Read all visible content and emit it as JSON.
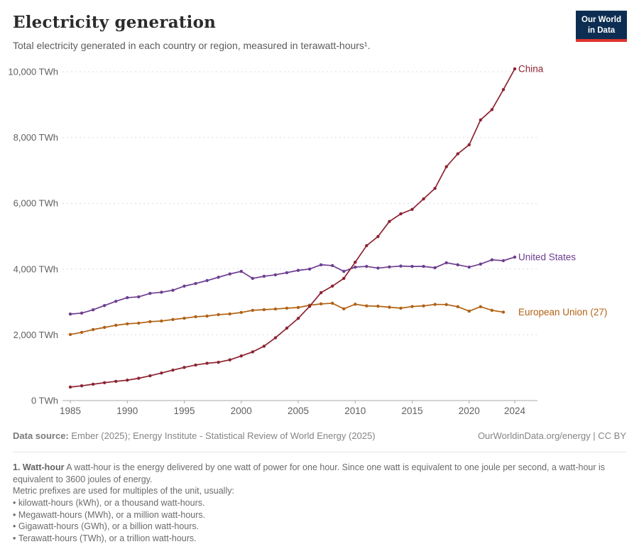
{
  "header": {
    "title": "Electricity generation",
    "subtitle": "Total electricity generated in each country or region, measured in terawatt-hours¹.",
    "logo": {
      "line1": "Our World",
      "line2": "in Data",
      "bg_color": "#0d2e52",
      "accent_color": "#e0342e"
    }
  },
  "chart_data": {
    "type": "line",
    "title": "Electricity generation",
    "unit": "TWh",
    "xlabel": "",
    "ylabel": "",
    "xlim": [
      1985,
      2024
    ],
    "ylim": [
      0,
      10000
    ],
    "grid": "dashed-horizontal",
    "legend_position": "end-of-line-labels",
    "x_ticks": [
      1985,
      1990,
      1995,
      2000,
      2005,
      2010,
      2015,
      2020,
      2024
    ],
    "y_ticks": [
      0,
      2000,
      4000,
      6000,
      8000,
      10000
    ],
    "y_tick_labels": [
      "0 TWh",
      "2,000 TWh",
      "4,000 TWh",
      "6,000 TWh",
      "8,000 TWh",
      "10,000 TWh"
    ],
    "series": [
      {
        "name": "European Union (27)",
        "color": "#B16214",
        "start_year": 1985,
        "values": [
          2010,
          2075,
          2160,
          2225,
          2290,
          2335,
          2355,
          2400,
          2420,
          2465,
          2505,
          2550,
          2570,
          2615,
          2635,
          2680,
          2745,
          2765,
          2785,
          2810,
          2830,
          2900,
          2940,
          2960,
          2790,
          2930,
          2880,
          2870,
          2840,
          2810,
          2860,
          2880,
          2925,
          2920,
          2855,
          2720,
          2855,
          2745,
          2690
        ]
      },
      {
        "name": "United States",
        "color": "#6D3E91",
        "start_year": 1985,
        "values": [
          2630,
          2660,
          2760,
          2890,
          3020,
          3130,
          3155,
          3260,
          3295,
          3355,
          3480,
          3560,
          3650,
          3750,
          3850,
          3930,
          3715,
          3780,
          3825,
          3890,
          3960,
          4000,
          4130,
          4105,
          3930,
          4060,
          4080,
          4030,
          4065,
          4090,
          4080,
          4080,
          4040,
          4190,
          4130,
          4060,
          4150,
          4280,
          4255,
          4365
        ]
      },
      {
        "name": "China",
        "color": "#8C2332",
        "start_year": 1985,
        "values": [
          411,
          450,
          497,
          545,
          585,
          621,
          678,
          754,
          839,
          928,
          1008,
          1081,
          1135,
          1166,
          1239,
          1356,
          1481,
          1654,
          1911,
          2203,
          2500,
          2866,
          3282,
          3482,
          3715,
          4207,
          4713,
          4988,
          5447,
          5678,
          5815,
          6133,
          6453,
          7111,
          7504,
          7779,
          8534,
          8849,
          9456,
          10087
        ]
      }
    ]
  },
  "footer": {
    "source_label": "Data source:",
    "source_text": " Ember (2025); Energy Institute - Statistical Review of World Energy (2025)",
    "license_text": "OurWorldinData.org/energy | CC BY"
  },
  "footnote": {
    "term": "1. Watt-hour",
    "definition": " A watt-hour is the energy delivered by one watt of power for one hour. Since one watt is equivalent to one joule per second, a watt-hour is equivalent to 3600 joules of energy.",
    "prefix_line": "Metric prefixes are used for multiples of the unit, usually:",
    "bullets": [
      "kilowatt-hours (kWh), or a thousand watt-hours.",
      "Megawatt-hours (MWh), or a million watt-hours.",
      "Gigawatt-hours (GWh), or a billion watt-hours.",
      "Terawatt-hours (TWh), or a trillion watt-hours."
    ]
  },
  "colors": {
    "grid": "#dcdcdc",
    "axis": "#a8a8a8",
    "tick_label": "#606060",
    "title": "#2b2b2b",
    "subtitle": "#5b5b5b"
  }
}
